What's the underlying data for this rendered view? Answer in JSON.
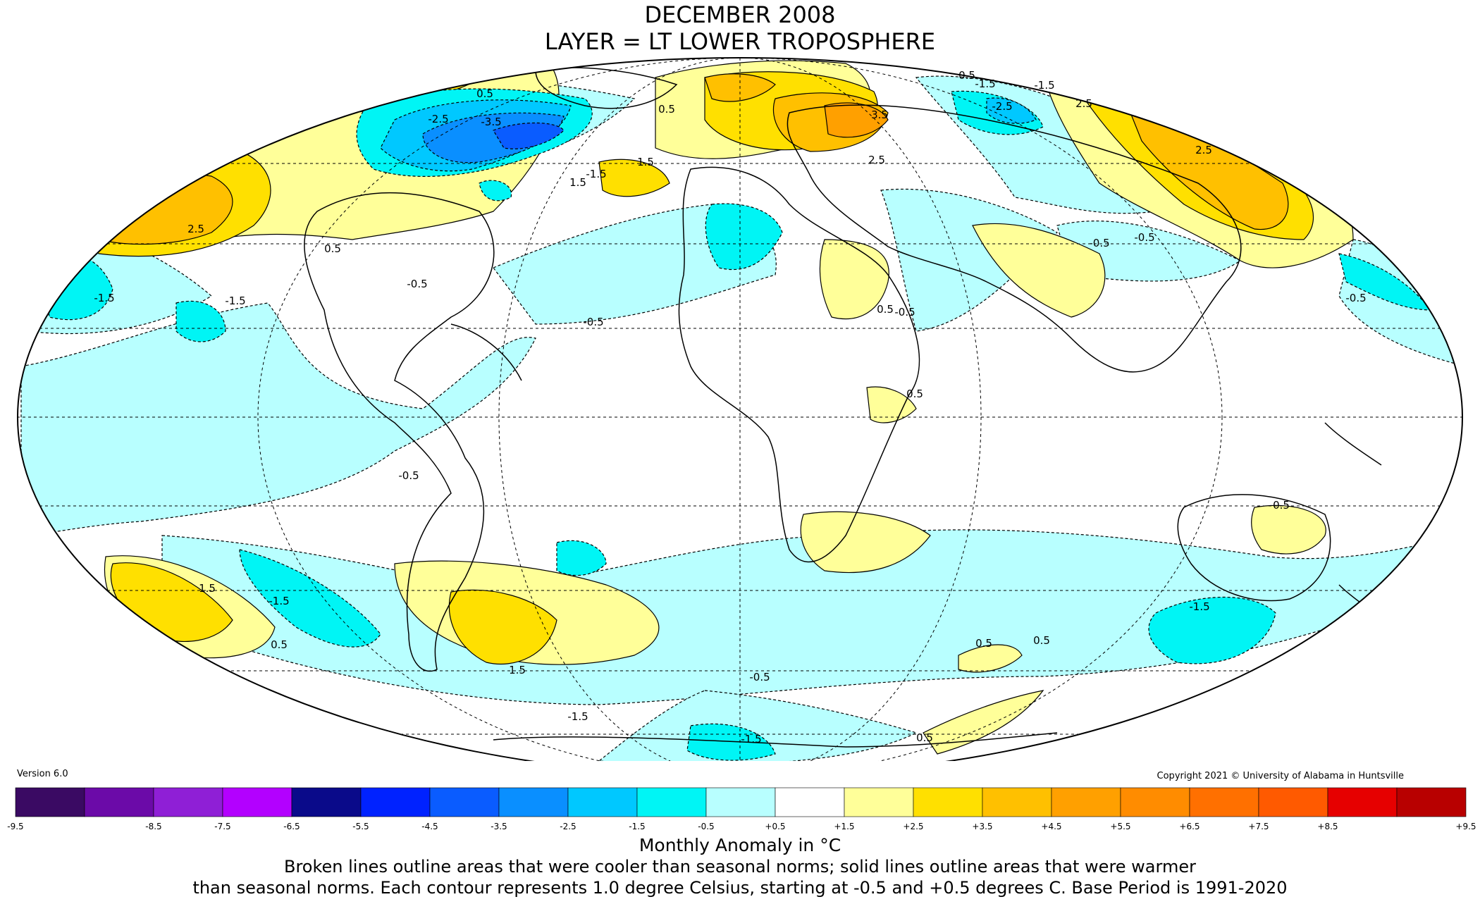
{
  "title_line1": "DECEMBER 2008",
  "title_line2": "LAYER = LT LOWER TROPOSPHERE",
  "version_label": "Version 6.0",
  "copyright": "Copyright 2021 © University of Alabama in Huntsville",
  "colorbar": {
    "tick_labels": [
      "-9.5",
      "-8.5",
      "-7.5",
      "-6.5",
      "-5.5",
      "-4.5",
      "-3.5",
      "-2.5",
      "-1.5",
      "-0.5",
      "+0.5",
      "+1.5",
      "+2.5",
      "+3.5",
      "+4.5",
      "+5.5",
      "+6.5",
      "+7.5",
      "+8.5",
      "+9.5"
    ],
    "colors": [
      "#3a0a63",
      "#6b0aa8",
      "#8f1fd6",
      "#b300ff",
      "#0a0a8a",
      "#0022ff",
      "#0a5cff",
      "#0a8fff",
      "#00c8ff",
      "#00f5f5",
      "#b8ffff",
      "#ffffff",
      "#ffff99",
      "#ffe000",
      "#ffc000",
      "#ffa000",
      "#ff8c00",
      "#ff7000",
      "#ff5a00",
      "#e60000",
      "#b80000"
    ]
  },
  "contour_labels": [
    "-3.5",
    "-2.5",
    "-2.5",
    "-1.5",
    "-1.5",
    "-1.5",
    "-1.5",
    "-1.5",
    "-1.5",
    "-0.5",
    "-0.5",
    "-0.5",
    "-0.5",
    "-0.5",
    "-0.5",
    "-0.5",
    "-0.5",
    "0.5",
    "0.5",
    "0.5",
    "0.5",
    "0.5",
    "0.5",
    "0.5",
    "0.5",
    "0.5",
    "0.5",
    "0.5",
    "1.5",
    "1.5",
    "1.5",
    "1.5",
    "2.5",
    "2.5",
    "2.5",
    "2.5",
    "3.5",
    "-1.5",
    "-1.5",
    "-1.5"
  ],
  "unit_caption": "Monthly Anomaly in °C",
  "note_line1": "Broken lines outline areas that were cooler than seasonal norms; solid lines outline areas that were warmer",
  "note_line2": "than seasonal norms. Each contour represents 1.0 degree Celsius, starting at -0.5 and +0.5 degrees C. Base Period is 1991-2020"
}
